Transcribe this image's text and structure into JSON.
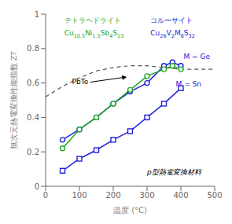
{
  "chart_data": {
    "type": "line",
    "xlabel": "温度 (°C)",
    "ylabel": "無次元熱電変換性能指数 ZT",
    "xlim": [
      0,
      500
    ],
    "ylim": [
      0,
      1.0
    ],
    "xticks": [
      0,
      100,
      200,
      300,
      400,
      500
    ],
    "yticks": [
      0,
      0.2,
      0.4,
      0.6,
      0.8,
      1.0
    ],
    "grid": false,
    "series": [
      {
        "color": "#555555",
        "marker": "none",
        "line_style": "dashed",
        "x": [
          0,
          50,
          100,
          150,
          200,
          250,
          300,
          350,
          400,
          450,
          500
        ],
        "values": [
          0.52,
          0.58,
          0.63,
          0.67,
          0.69,
          0.7,
          0.7,
          0.69,
          0.68,
          0.68,
          0.68
        ]
      },
      {
        "color": "#2222dd",
        "marker": "circle",
        "line_style": "solid",
        "x": [
          50,
          100,
          150,
          200,
          250,
          300,
          350,
          375,
          400
        ],
        "values": [
          0.27,
          0.33,
          0.4,
          0.48,
          0.55,
          0.6,
          0.7,
          0.72,
          0.7
        ]
      },
      {
        "color": "#2222dd",
        "marker": "square",
        "line_style": "solid",
        "x": [
          50,
          100,
          150,
          200,
          250,
          300,
          350,
          400
        ],
        "values": [
          0.09,
          0.16,
          0.21,
          0.27,
          0.32,
          0.4,
          0.48,
          0.57
        ]
      },
      {
        "color": "#22aa22",
        "marker": "circle",
        "line_style": "solid",
        "x": [
          50,
          100,
          150,
          200,
          250,
          300,
          350,
          375,
          400
        ],
        "values": [
          0.22,
          0.33,
          0.4,
          0.48,
          0.56,
          0.64,
          0.68,
          0.7,
          0.68
        ]
      }
    ],
    "annotations": [
      {
        "text": "PbTe",
        "color": "#000000"
      },
      {
        "text": "コルーサイト",
        "color": "#2222dd"
      },
      {
        "text": "Cu26V2M6S32",
        "color": "#2222dd"
      },
      {
        "text": "M = Ge",
        "color": "#2222dd"
      },
      {
        "text": "M = Sn",
        "color": "#2222dd"
      },
      {
        "text": "テトラヘドライト",
        "color": "#22aa22"
      },
      {
        "text": "Cu10.5Ni1.5Sb4S13",
        "color": "#22aa22"
      },
      {
        "text": "p型熱電変換材料",
        "color": "#000000"
      }
    ]
  }
}
